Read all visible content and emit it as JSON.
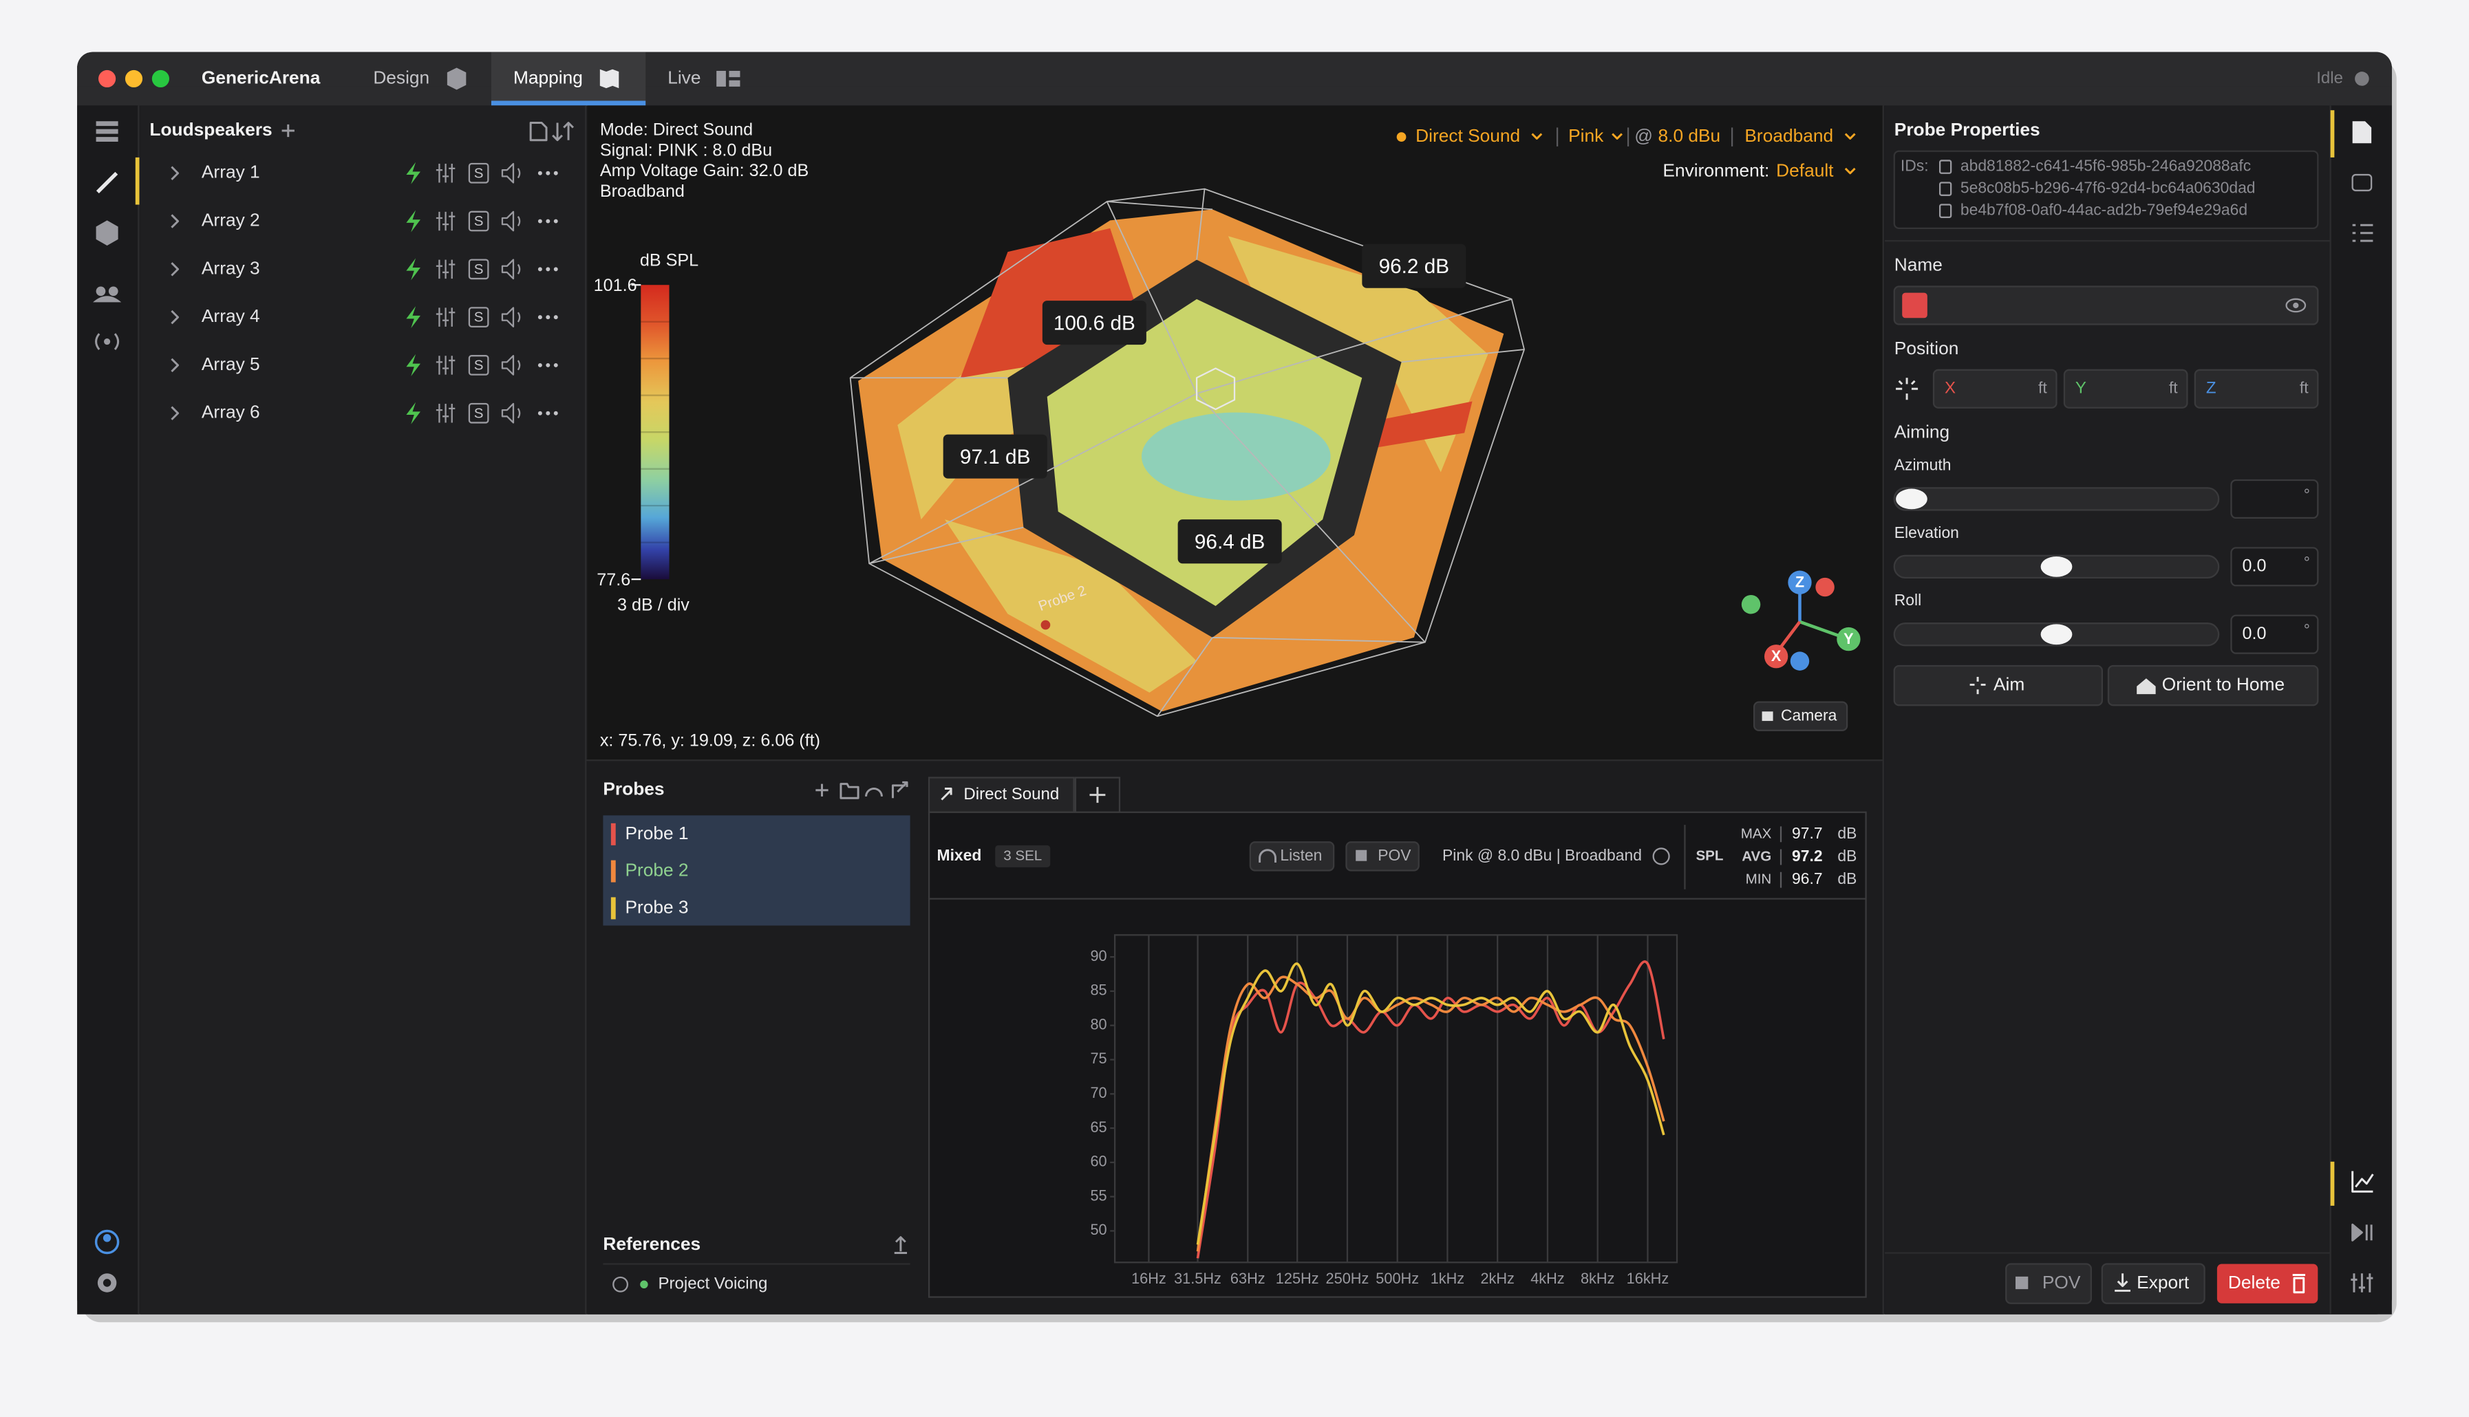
{
  "window": {
    "app_name": "GenericArena",
    "tabs": [
      "Design",
      "Mapping",
      "Live"
    ],
    "status": "Idle"
  },
  "loudspeakers": {
    "title": "Loudspeakers",
    "solo_label": "S",
    "arrays": [
      "Array 1",
      "Array 2",
      "Array 3",
      "Array 4",
      "Array 5",
      "Array 6"
    ]
  },
  "viewport": {
    "info": [
      "Mode: Direct Sound",
      "Signal: PINK : 8.0 dBu",
      "Amp Voltage Gain: 32.0 dB",
      "Broadband"
    ],
    "controls": [
      "Direct Sound",
      "Pink",
      "@",
      "8.0 dBu",
      "Broadband"
    ],
    "environment_label": "Environment:",
    "environment": "Default",
    "color_scale": {
      "title": "dB SPL",
      "max": 101.6,
      "min": 77.6,
      "division": "3 dB / div"
    },
    "callouts": [
      "100.6 dB",
      "96.2 dB",
      "97.1 dB",
      "96.4 dB"
    ],
    "probe_label": "Probe 2",
    "axes": [
      "X",
      "Y",
      "Z"
    ],
    "camera": "Camera",
    "coordinates": "x: 75.76, y: 19.09, z: 6.06 (ft)"
  },
  "probes": {
    "title": "Probes",
    "items": [
      "Probe 1",
      "Probe 2",
      "Probe 3"
    ],
    "references_title": "References",
    "references": [
      "Project Voicing"
    ]
  },
  "results": {
    "tab": "Direct Sound",
    "mode": "Mixed",
    "selection": "3 SEL",
    "listen": "Listen",
    "pov": "POV",
    "signal": "Pink @ 8.0 dBu | Broadband",
    "metric": "SPL",
    "stats": [
      {
        "label": "MAX",
        "value": 97.7,
        "unit": "dB"
      },
      {
        "label": "AVG",
        "value": 97.2,
        "unit": "dB"
      },
      {
        "label": "MIN",
        "value": 96.7,
        "unit": "dB"
      }
    ]
  },
  "chart_data": {
    "type": "line",
    "x": [
      31.5,
      40,
      50,
      63,
      80,
      100,
      125,
      160,
      200,
      250,
      315,
      400,
      500,
      630,
      800,
      1000,
      1250,
      1600,
      2000,
      2500,
      3150,
      4000,
      5000,
      6300,
      8000,
      10000,
      12500,
      16000,
      20000
    ],
    "xscale": "log",
    "xlim": [
      10,
      24000
    ],
    "xticks": [
      {
        "value": 16,
        "label": "16Hz"
      },
      {
        "value": 31.5,
        "label": "31.5Hz"
      },
      {
        "value": 63,
        "label": "63Hz"
      },
      {
        "value": 125,
        "label": "125Hz"
      },
      {
        "value": 250,
        "label": "250Hz"
      },
      {
        "value": 500,
        "label": "500Hz"
      },
      {
        "value": 1000,
        "label": "1kHz"
      },
      {
        "value": 2000,
        "label": "2kHz"
      },
      {
        "value": 4000,
        "label": "4kHz"
      },
      {
        "value": 8000,
        "label": "8kHz"
      },
      {
        "value": 16000,
        "label": "16kHz"
      }
    ],
    "ylim": [
      45.4,
      93.2
    ],
    "yticks": [
      50,
      55,
      60,
      65,
      70,
      75,
      80,
      85,
      90
    ],
    "grid": "x",
    "series": [
      {
        "name": "Probe 1",
        "color": "#e5534b",
        "values": [
          46,
          62,
          79,
          83,
          85,
          79,
          86,
          84,
          80,
          81,
          79,
          82,
          80,
          83,
          81,
          84,
          82,
          83,
          82,
          83,
          81,
          84,
          80,
          83,
          79,
          82,
          86,
          89,
          78
        ]
      },
      {
        "name": "Probe 2",
        "color": "#f0883e",
        "values": [
          47,
          65,
          80,
          86,
          84,
          87,
          86,
          84,
          85,
          81,
          84,
          82,
          83,
          84,
          83,
          82,
          84,
          83,
          84,
          82,
          84,
          83,
          82,
          83,
          84,
          81,
          80,
          74,
          66
        ]
      },
      {
        "name": "Probe 3",
        "color": "#e8c33a",
        "values": [
          48,
          64,
          78,
          84,
          88,
          85,
          89,
          83,
          86,
          80,
          85,
          82,
          84,
          83,
          84,
          83,
          83,
          84,
          83,
          84,
          82,
          85,
          81,
          82,
          79,
          83,
          77,
          72,
          64
        ]
      }
    ]
  },
  "properties": {
    "title": "Probe Properties",
    "ids_label": "IDs:",
    "ids": [
      "abd81882-c641-45f6-985b-246a92088afc",
      "5e8c08b5-b296-47f6-92d4-bc64a0630dad",
      "be4b7f08-0af0-44ac-ad2b-79ef94e29a6d"
    ],
    "name_label": "Name",
    "position_label": "Position",
    "position_fields": [
      {
        "axis": "X",
        "unit": "ft"
      },
      {
        "axis": "Y",
        "unit": "ft"
      },
      {
        "axis": "Z",
        "unit": "ft"
      }
    ],
    "aiming_label": "Aiming",
    "aiming": [
      {
        "label": "Azimuth",
        "value": "",
        "unit": "°"
      },
      {
        "label": "Elevation",
        "value": "0.0",
        "unit": "°"
      },
      {
        "label": "Roll",
        "value": "0.0",
        "unit": "°"
      }
    ],
    "aim_button": "Aim",
    "home_button": "Orient to Home",
    "pov_button": "POV",
    "export_button": "Export",
    "delete_button": "Delete"
  }
}
